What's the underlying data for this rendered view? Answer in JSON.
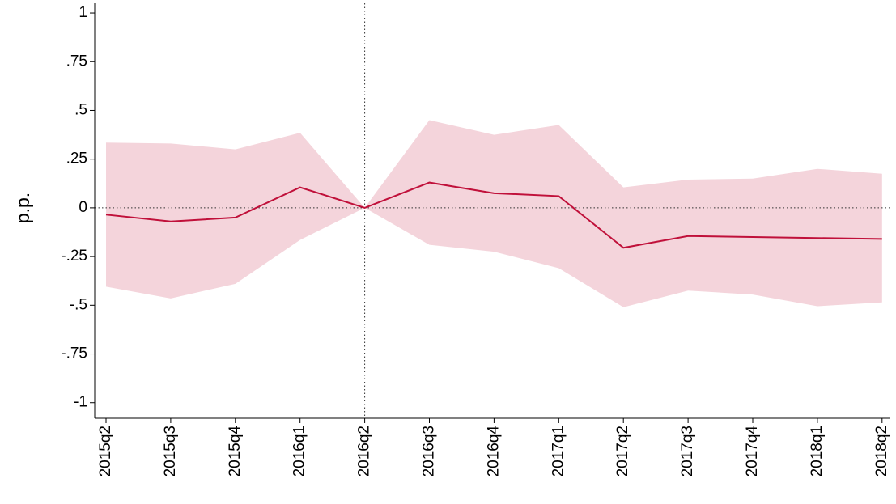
{
  "chart_data": {
    "type": "line",
    "y_label": "p.p.",
    "categories": [
      "2015q2",
      "2015q3",
      "2015q4",
      "2016q1",
      "2016q2",
      "2016q3",
      "2016q4",
      "2017q1",
      "2017q2",
      "2017q3",
      "2017q4",
      "2018q1",
      "2018q2"
    ],
    "values": [
      -0.035,
      -0.07,
      -0.05,
      0.105,
      0,
      0.13,
      0.075,
      0.06,
      -0.205,
      -0.145,
      -0.15,
      -0.155,
      -0.16
    ],
    "ci_upper": [
      0.335,
      0.33,
      0.3,
      0.385,
      0,
      0.45,
      0.375,
      0.425,
      0.105,
      0.145,
      0.15,
      0.2,
      0.175
    ],
    "ci_lower": [
      -0.405,
      -0.465,
      -0.39,
      -0.165,
      0,
      -0.19,
      -0.225,
      -0.31,
      -0.51,
      -0.425,
      -0.445,
      -0.505,
      -0.485
    ],
    "color": "#c0103a",
    "band_color": "#f4d4db",
    "ylim": [
      -1.08,
      1.05
    ],
    "yticks": [
      -1,
      {
        "value": -0.75,
        "label": "-.75"
      },
      {
        "value": -0.5,
        "label": "-.5"
      },
      {
        "value": -0.25,
        "label": "-.25"
      },
      0,
      {
        "value": 0.25,
        "label": ".25"
      },
      {
        "value": 0.5,
        "label": ".5"
      },
      {
        "value": 0.75,
        "label": ".75"
      },
      1
    ],
    "vline": "2016q2",
    "hline": 0
  }
}
